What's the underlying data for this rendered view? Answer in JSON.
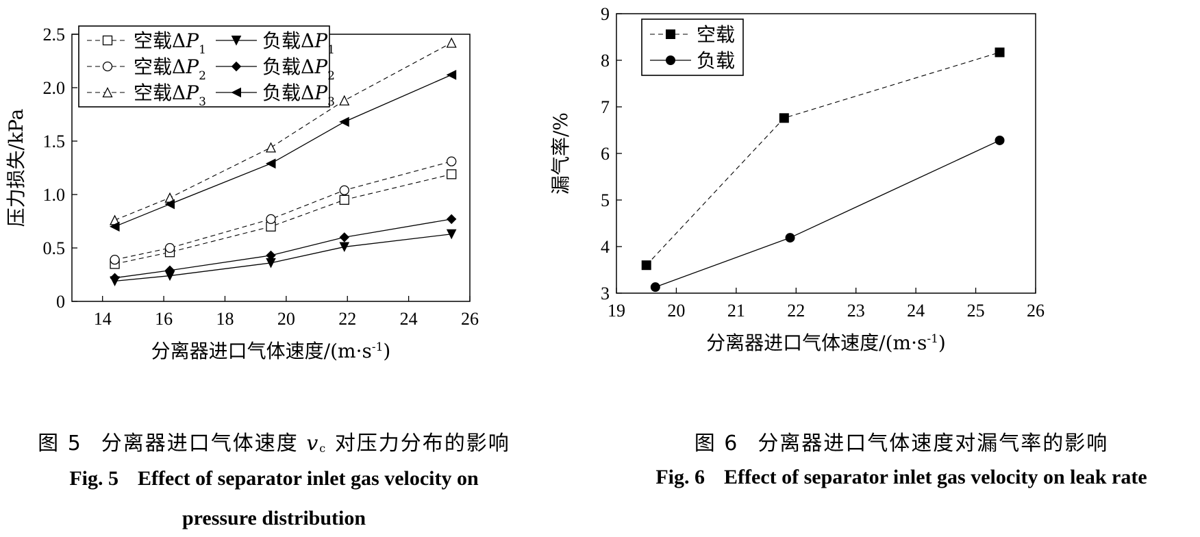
{
  "figure5": {
    "caption_cn_prefix": "图 5",
    "caption_cn_text": "分离器进口气体速度",
    "caption_cn_var": "v",
    "caption_cn_var_sub": "c",
    "caption_cn_tail": "对压力分布的影响",
    "caption_en_prefix": "Fig. 5",
    "caption_en_line1": "Effect of separator inlet gas velocity on",
    "caption_en_line2": "pressure distribution"
  },
  "figure6": {
    "caption_cn_prefix": "图 6",
    "caption_cn_text": "分离器进口气体速度对漏气率的影响",
    "caption_en_prefix": "Fig. 6",
    "caption_en_text": "Effect of separator inlet gas velocity on leak rate"
  },
  "chart_data": [
    {
      "type": "line",
      "xlabel": "分离器进口气体速度/(m·s-1)",
      "ylabel": "压力损失/kPa",
      "xlim": [
        13,
        26
      ],
      "ylim": [
        0,
        2.5
      ],
      "xticks": [
        14,
        16,
        18,
        20,
        22,
        24,
        26
      ],
      "yticks": [
        0,
        0.5,
        1.0,
        1.5,
        2.0,
        2.5
      ],
      "ytick_labels": [
        "0",
        "0.5",
        "1.0",
        "1.5",
        "2.0",
        "2.5"
      ],
      "grid": false,
      "legend_position": "top-left",
      "series": [
        {
          "name": "空载ΔP1",
          "label_base": "空载ΔP",
          "label_sub": "1",
          "marker": "square-open",
          "dash": true,
          "x": [
            14.4,
            16.2,
            19.5,
            21.9,
            25.4
          ],
          "y": [
            0.35,
            0.46,
            0.7,
            0.95,
            1.19
          ]
        },
        {
          "name": "空载ΔP2",
          "label_base": "空载ΔP",
          "label_sub": "2",
          "marker": "circle-open",
          "dash": true,
          "x": [
            14.4,
            16.2,
            19.5,
            21.9,
            25.4
          ],
          "y": [
            0.39,
            0.5,
            0.77,
            1.04,
            1.31
          ]
        },
        {
          "name": "空载ΔP3",
          "label_base": "空载ΔP",
          "label_sub": "3",
          "marker": "triangle-open",
          "dash": true,
          "x": [
            14.4,
            16.2,
            19.5,
            21.9,
            25.4
          ],
          "y": [
            0.76,
            0.97,
            1.44,
            1.88,
            2.42
          ]
        },
        {
          "name": "负载ΔP1",
          "label_base": "负载ΔP",
          "label_sub": "1",
          "marker": "triangle-down-filled",
          "dash": false,
          "x": [
            14.4,
            16.2,
            19.5,
            21.9,
            25.4
          ],
          "y": [
            0.19,
            0.24,
            0.36,
            0.51,
            0.63
          ]
        },
        {
          "name": "负载ΔP2",
          "label_base": "负载ΔP",
          "label_sub": "2",
          "marker": "diamond-filled",
          "dash": false,
          "x": [
            14.4,
            16.2,
            19.5,
            21.9,
            25.4
          ],
          "y": [
            0.22,
            0.29,
            0.43,
            0.6,
            0.77
          ]
        },
        {
          "name": "负载ΔP3",
          "label_base": "负载ΔP",
          "label_sub": "3",
          "marker": "triangle-left-filled",
          "dash": false,
          "x": [
            14.4,
            16.2,
            19.5,
            21.9,
            25.4
          ],
          "y": [
            0.7,
            0.91,
            1.29,
            1.68,
            2.12
          ]
        }
      ]
    },
    {
      "type": "line",
      "xlabel": "分离器进口气体速度/(m·s-1)",
      "ylabel": "漏气率/%",
      "xlim": [
        19,
        26
      ],
      "ylim": [
        3,
        9
      ],
      "xticks": [
        19,
        20,
        21,
        22,
        23,
        24,
        25,
        26
      ],
      "yticks": [
        3,
        4,
        5,
        6,
        7,
        8,
        9
      ],
      "grid": false,
      "legend_position": "top-left",
      "series": [
        {
          "name": "空载",
          "marker": "square-filled",
          "dash": true,
          "x": [
            19.5,
            21.8,
            25.4
          ],
          "y": [
            3.6,
            6.76,
            8.17
          ]
        },
        {
          "name": "负载",
          "marker": "circle-filled",
          "dash": false,
          "x": [
            19.65,
            21.9,
            25.4
          ],
          "y": [
            3.13,
            4.19,
            6.28
          ]
        }
      ]
    }
  ]
}
